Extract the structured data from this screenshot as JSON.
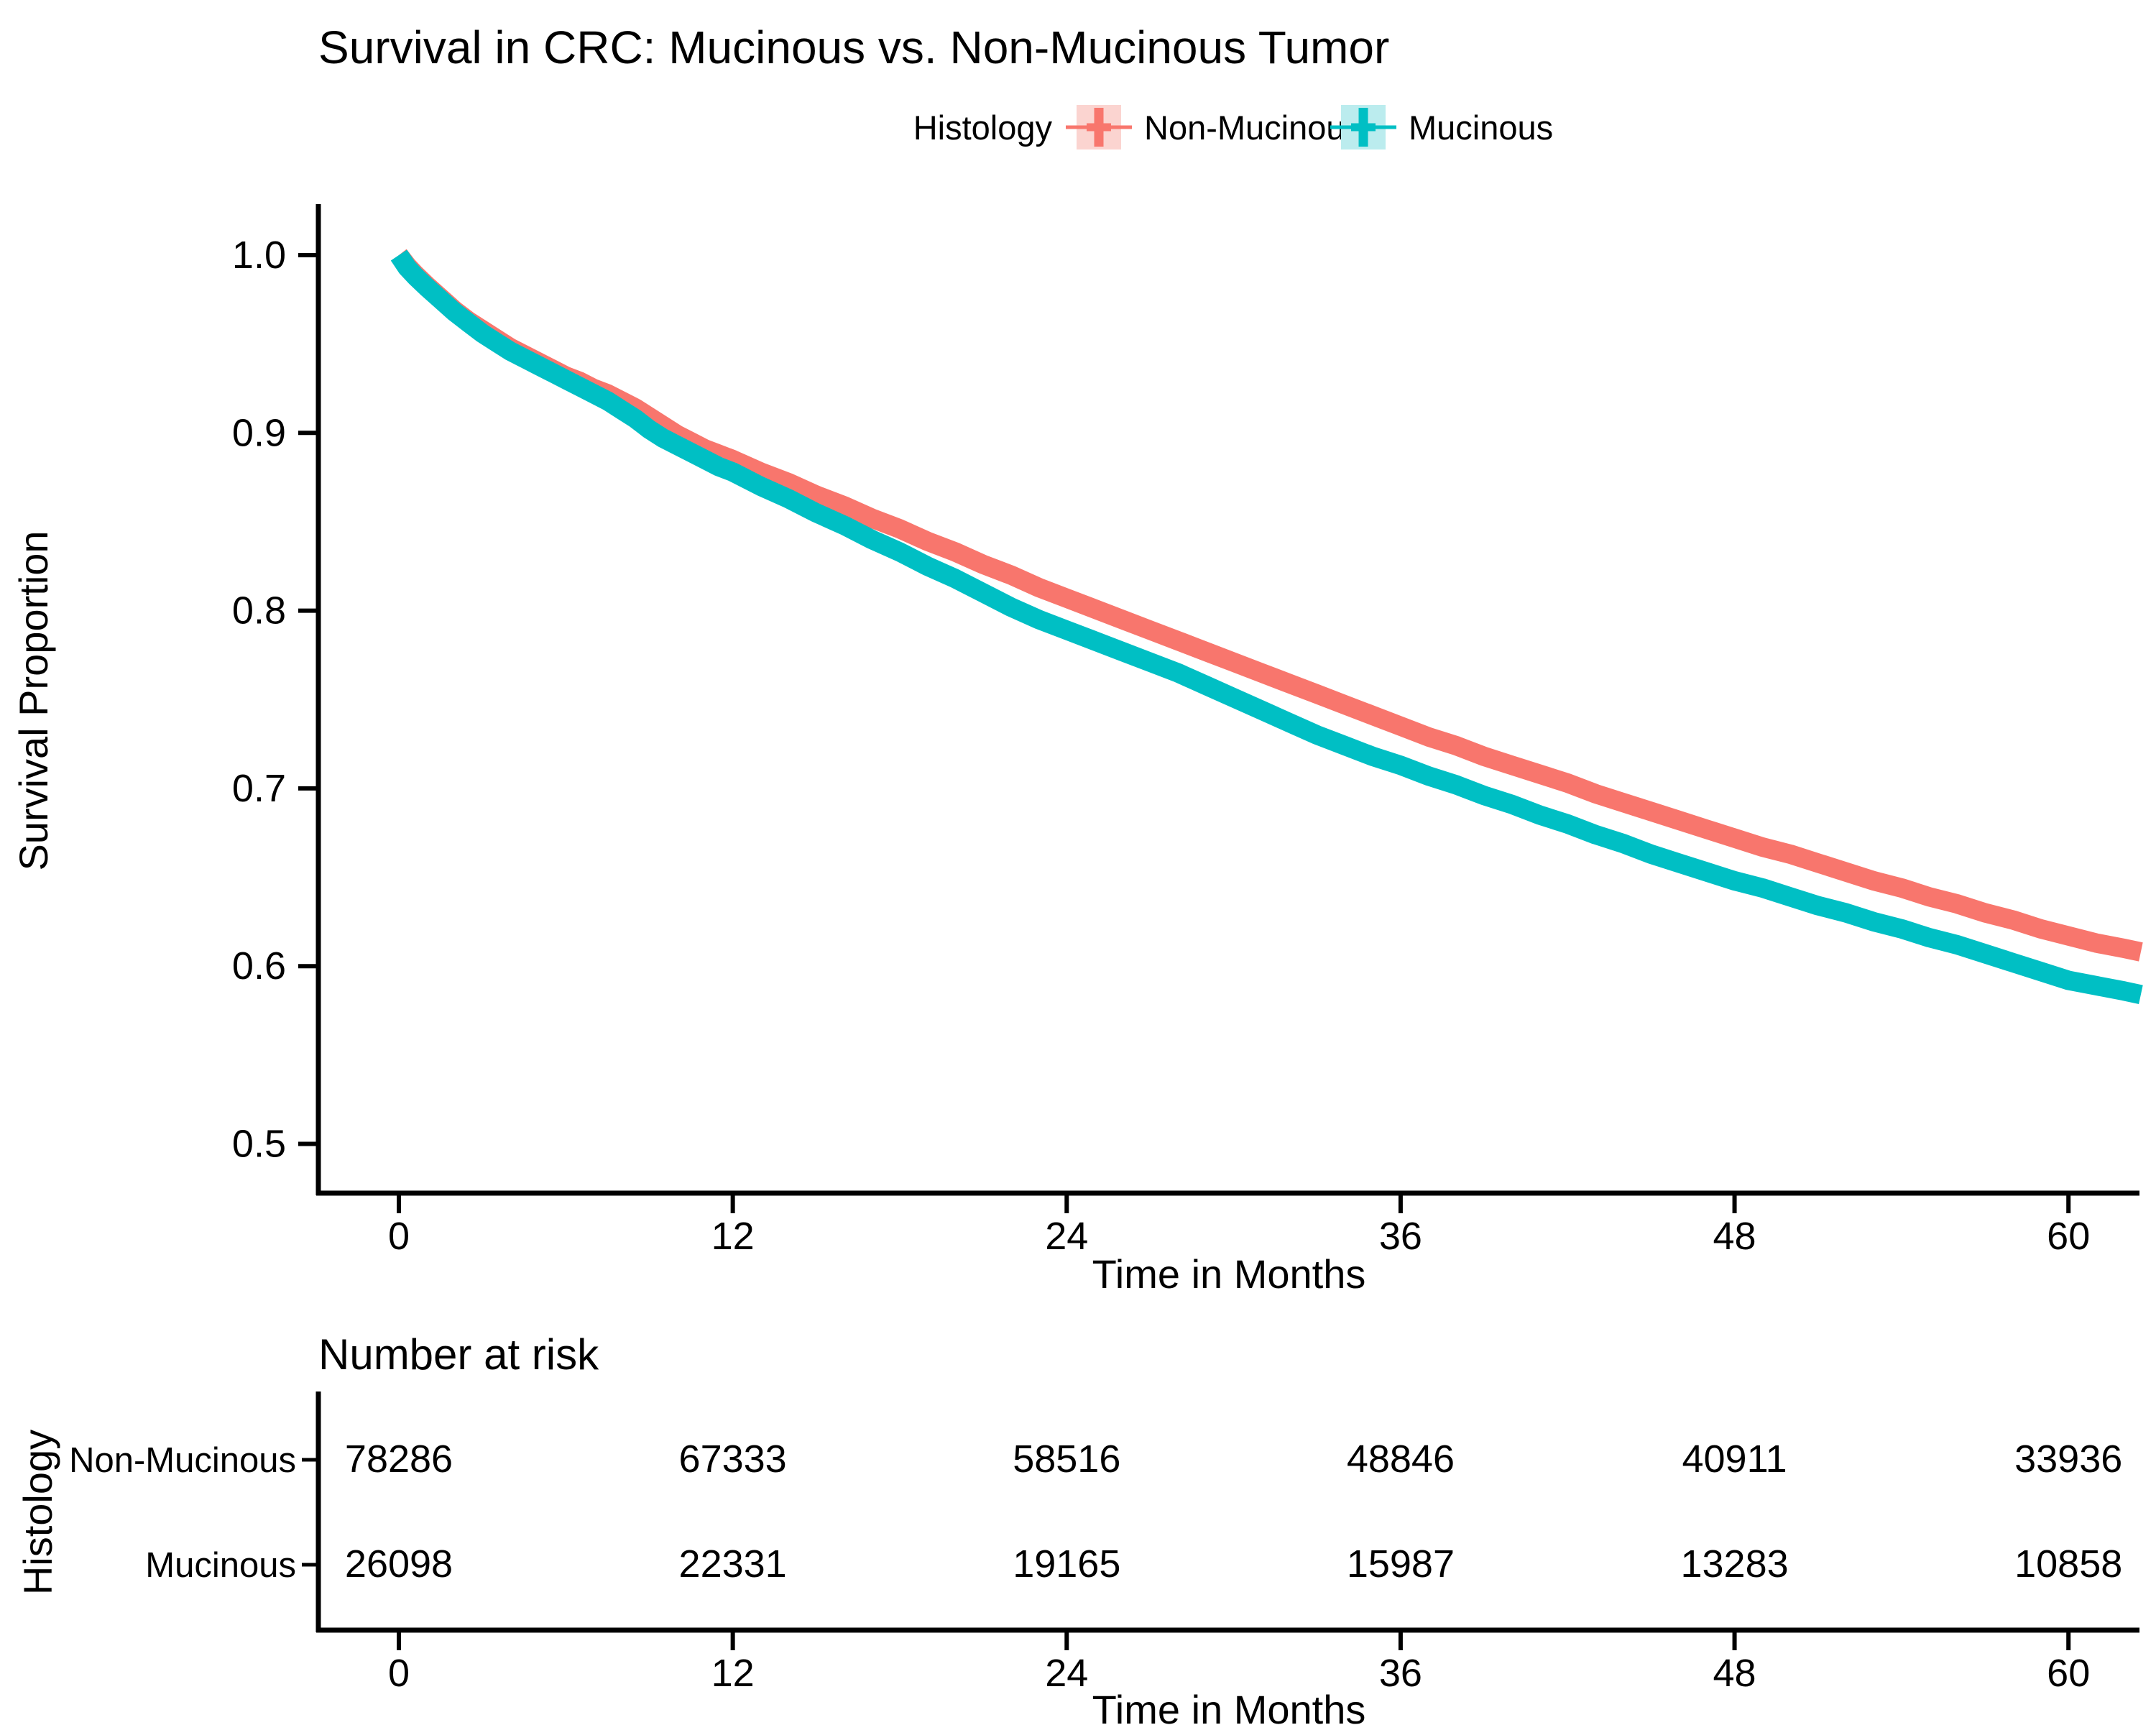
{
  "title": "Survival in CRC: Mucinous vs. Non-Mucinous Tumor",
  "legend": {
    "title": "Histology",
    "items": [
      {
        "label": "Non-Mucinous",
        "color": "#F8766D",
        "fill": "#FBD4D0"
      },
      {
        "label": "Mucinous",
        "color": "#00BFC4",
        "fill": "#BBECEE"
      }
    ]
  },
  "chart_data": {
    "type": "line",
    "title": "Survival in CRC: Mucinous vs. Non-Mucinous Tumor",
    "xlabel": "Time in Months",
    "ylabel": "Survival Proportion",
    "legend_title": "Histology",
    "legend_position": "top",
    "grid": false,
    "xlim": [
      -2.9,
      62.6
    ],
    "ylim": [
      0.4725,
      1.0275
    ],
    "x_ticks": [
      0,
      12,
      24,
      36,
      48,
      60
    ],
    "y_ticks": [
      1.0,
      0.9,
      0.8,
      0.7,
      0.6,
      0.5
    ],
    "series": [
      {
        "name": "Non-Mucinous",
        "color": "#F8766D",
        "points": [
          [
            0,
            1.0
          ],
          [
            0.3,
            0.994
          ],
          [
            0.6,
            0.989
          ],
          [
            1,
            0.983
          ],
          [
            1.5,
            0.976
          ],
          [
            2,
            0.969
          ],
          [
            2.5,
            0.963
          ],
          [
            3,
            0.958
          ],
          [
            3.5,
            0.953
          ],
          [
            4,
            0.948
          ],
          [
            4.5,
            0.944
          ],
          [
            5,
            0.94
          ],
          [
            5.5,
            0.936
          ],
          [
            6,
            0.932
          ],
          [
            6.5,
            0.929
          ],
          [
            7,
            0.925
          ],
          [
            7.5,
            0.922
          ],
          [
            8,
            0.918
          ],
          [
            8.5,
            0.914
          ],
          [
            9,
            0.909
          ],
          [
            9.5,
            0.904
          ],
          [
            10,
            0.899
          ],
          [
            10.5,
            0.895
          ],
          [
            11,
            0.891
          ],
          [
            11.5,
            0.888
          ],
          [
            12,
            0.885
          ],
          [
            13,
            0.878
          ],
          [
            14,
            0.872
          ],
          [
            15,
            0.865
          ],
          [
            16,
            0.859
          ],
          [
            17,
            0.852
          ],
          [
            18,
            0.846
          ],
          [
            19,
            0.839
          ],
          [
            20,
            0.833
          ],
          [
            21,
            0.826
          ],
          [
            22,
            0.82
          ],
          [
            23,
            0.813
          ],
          [
            24,
            0.807
          ],
          [
            25,
            0.801
          ],
          [
            26,
            0.795
          ],
          [
            27,
            0.789
          ],
          [
            28,
            0.783
          ],
          [
            29,
            0.777
          ],
          [
            30,
            0.771
          ],
          [
            31,
            0.765
          ],
          [
            32,
            0.759
          ],
          [
            33,
            0.753
          ],
          [
            34,
            0.747
          ],
          [
            35,
            0.741
          ],
          [
            36,
            0.735
          ],
          [
            37,
            0.729
          ],
          [
            38,
            0.724
          ],
          [
            39,
            0.718
          ],
          [
            40,
            0.713
          ],
          [
            41,
            0.708
          ],
          [
            42,
            0.703
          ],
          [
            43,
            0.697
          ],
          [
            44,
            0.692
          ],
          [
            45,
            0.687
          ],
          [
            46,
            0.682
          ],
          [
            47,
            0.677
          ],
          [
            48,
            0.672
          ],
          [
            49,
            0.667
          ],
          [
            50,
            0.663
          ],
          [
            51,
            0.658
          ],
          [
            52,
            0.653
          ],
          [
            53,
            0.648
          ],
          [
            54,
            0.644
          ],
          [
            55,
            0.639
          ],
          [
            56,
            0.635
          ],
          [
            57,
            0.63
          ],
          [
            58,
            0.626
          ],
          [
            59,
            0.621
          ],
          [
            60,
            0.617
          ],
          [
            61,
            0.613
          ],
          [
            62,
            0.61
          ],
          [
            62.6,
            0.608
          ]
        ]
      },
      {
        "name": "Mucinous",
        "color": "#00BFC4",
        "points": [
          [
            0,
            1.0
          ],
          [
            0.3,
            0.993
          ],
          [
            0.6,
            0.988
          ],
          [
            1,
            0.982
          ],
          [
            1.5,
            0.975
          ],
          [
            2,
            0.968
          ],
          [
            2.5,
            0.962
          ],
          [
            3,
            0.956
          ],
          [
            3.5,
            0.951
          ],
          [
            4,
            0.946
          ],
          [
            4.5,
            0.942
          ],
          [
            5,
            0.938
          ],
          [
            5.5,
            0.934
          ],
          [
            6,
            0.93
          ],
          [
            6.5,
            0.926
          ],
          [
            7,
            0.922
          ],
          [
            7.5,
            0.918
          ],
          [
            8,
            0.913
          ],
          [
            8.5,
            0.908
          ],
          [
            9,
            0.902
          ],
          [
            9.5,
            0.897
          ],
          [
            10,
            0.893
          ],
          [
            10.5,
            0.889
          ],
          [
            11,
            0.885
          ],
          [
            11.5,
            0.881
          ],
          [
            12,
            0.878
          ],
          [
            13,
            0.87
          ],
          [
            14,
            0.863
          ],
          [
            15,
            0.855
          ],
          [
            16,
            0.848
          ],
          [
            17,
            0.84
          ],
          [
            18,
            0.833
          ],
          [
            19,
            0.825
          ],
          [
            20,
            0.818
          ],
          [
            21,
            0.81
          ],
          [
            22,
            0.802
          ],
          [
            23,
            0.795
          ],
          [
            24,
            0.789
          ],
          [
            25,
            0.783
          ],
          [
            26,
            0.777
          ],
          [
            27,
            0.771
          ],
          [
            28,
            0.765
          ],
          [
            29,
            0.758
          ],
          [
            30,
            0.751
          ],
          [
            31,
            0.744
          ],
          [
            32,
            0.737
          ],
          [
            33,
            0.73
          ],
          [
            34,
            0.724
          ],
          [
            35,
            0.718
          ],
          [
            36,
            0.713
          ],
          [
            37,
            0.707
          ],
          [
            38,
            0.702
          ],
          [
            39,
            0.696
          ],
          [
            40,
            0.691
          ],
          [
            41,
            0.685
          ],
          [
            42,
            0.68
          ],
          [
            43,
            0.674
          ],
          [
            44,
            0.669
          ],
          [
            45,
            0.663
          ],
          [
            46,
            0.658
          ],
          [
            47,
            0.653
          ],
          [
            48,
            0.648
          ],
          [
            49,
            0.644
          ],
          [
            50,
            0.639
          ],
          [
            51,
            0.634
          ],
          [
            52,
            0.63
          ],
          [
            53,
            0.625
          ],
          [
            54,
            0.621
          ],
          [
            55,
            0.616
          ],
          [
            56,
            0.612
          ],
          [
            57,
            0.607
          ],
          [
            58,
            0.602
          ],
          [
            59,
            0.597
          ],
          [
            60,
            0.592
          ],
          [
            61,
            0.589
          ],
          [
            62,
            0.586
          ],
          [
            62.6,
            0.584
          ]
        ]
      }
    ]
  },
  "risk_table": {
    "header": "Number at risk",
    "axis_label": "Histology",
    "xlabel": "Time in Months",
    "x_ticks": [
      0,
      12,
      24,
      36,
      48,
      60
    ],
    "rows": [
      {
        "label": "Non-Mucinous",
        "color": "#F8766D",
        "values": [
          "78286",
          "67333",
          "58516",
          "48846",
          "40911",
          "33936"
        ]
      },
      {
        "label": "Mucinous",
        "color": "#00BFC4",
        "values": [
          "26098",
          "22331",
          "19165",
          "15987",
          "13283",
          "10858"
        ]
      }
    ]
  }
}
